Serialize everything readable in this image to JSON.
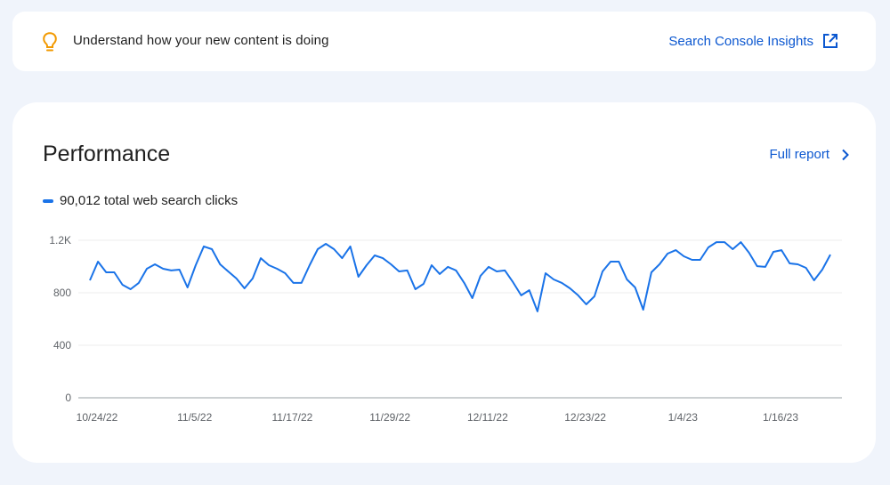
{
  "insight_banner": {
    "icon": "lightbulb-icon",
    "icon_color": "#f29900",
    "text": "Understand how your new content is doing",
    "link_label": "Search Console Insights",
    "link_icon": "external-link-icon"
  },
  "performance": {
    "title": "Performance",
    "full_report_label": "Full report",
    "full_report_icon": "chevron-right-icon",
    "legend_label": "90,012 total web search clicks",
    "series_color": "#1a73e8",
    "link_color": "#0b57d0"
  },
  "chart_data": {
    "type": "line",
    "title": "Performance",
    "xlabel": "",
    "ylabel": "",
    "ylim": [
      0,
      1200
    ],
    "yticks": [
      0,
      400,
      800,
      1200
    ],
    "ytick_labels": [
      "0",
      "400",
      "800",
      "1.2K"
    ],
    "xtick_labels": [
      "10/24/22",
      "11/5/22",
      "11/17/22",
      "11/29/22",
      "12/11/22",
      "12/23/22",
      "1/4/23",
      "1/16/23"
    ],
    "x_start": "10/24/22",
    "x_end": "1/23/23",
    "grid": "horizontal",
    "legend": [
      {
        "name": "90,012 total web search clicks",
        "color": "#1a73e8"
      }
    ],
    "series": [
      {
        "name": "Web search clicks",
        "values": [
          895,
          1037,
          956,
          956,
          861,
          827,
          875,
          983,
          1017,
          983,
          970,
          976,
          841,
          1010,
          1153,
          1132,
          1017,
          963,
          909,
          834,
          909,
          1064,
          1010,
          983,
          949,
          875,
          875,
          1010,
          1132,
          1173,
          1132,
          1064,
          1153,
          922,
          1010,
          1085,
          1064,
          1017,
          963,
          970,
          827,
          868,
          1010,
          943,
          997,
          970,
          875,
          759,
          929,
          997,
          963,
          970,
          881,
          780,
          820,
          658,
          949,
          902,
          875,
          834,
          780,
          712,
          773,
          963,
          1037,
          1037,
          902,
          841,
          671,
          956,
          1017,
          1098,
          1125,
          1078,
          1051,
          1051,
          1146,
          1186,
          1186,
          1132,
          1186,
          1105,
          1003,
          997,
          1112,
          1125,
          1024,
          1017,
          990,
          895,
          976,
          1091
        ]
      }
    ]
  }
}
